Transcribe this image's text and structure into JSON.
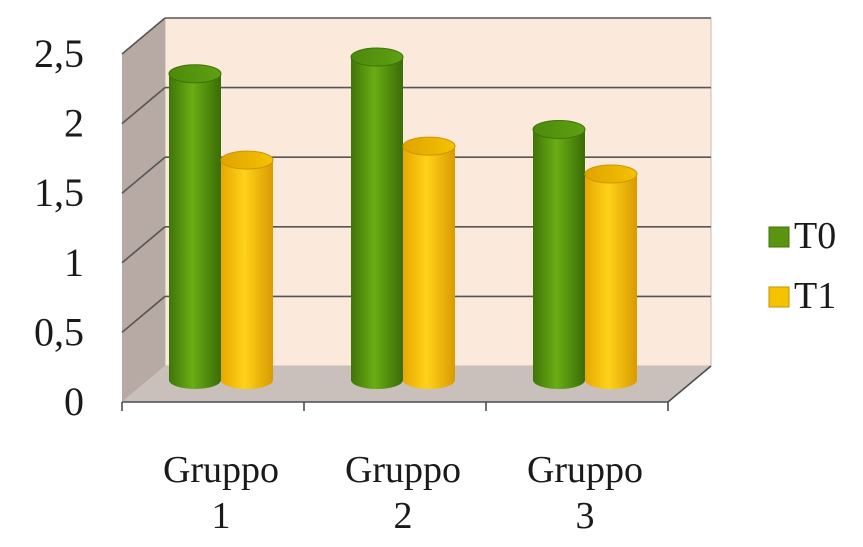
{
  "chart_data": {
    "type": "bar",
    "categories": [
      [
        "Gruppo",
        "1"
      ],
      [
        "Gruppo",
        "2"
      ],
      [
        "Gruppo",
        "3"
      ]
    ],
    "series": [
      {
        "name": "T0",
        "values": [
          2.2,
          2.32,
          1.8
        ]
      },
      {
        "name": "T1",
        "values": [
          1.58,
          1.68,
          1.48
        ]
      }
    ],
    "ylim": [
      0,
      2.5
    ],
    "yticks": [
      "0",
      "0,5",
      "1",
      "1,5",
      "2",
      "2,5"
    ],
    "title": "",
    "xlabel": "",
    "ylabel": "",
    "grid": true,
    "legend": "right",
    "style": "3d-cylinder"
  },
  "colors": {
    "T0": "#5a9410",
    "T1": "#f5c400",
    "back_wall": "#fbe9dc",
    "side_wall": "#b7a9a3",
    "floor": "#c9bfbb",
    "grid": "#555555"
  }
}
